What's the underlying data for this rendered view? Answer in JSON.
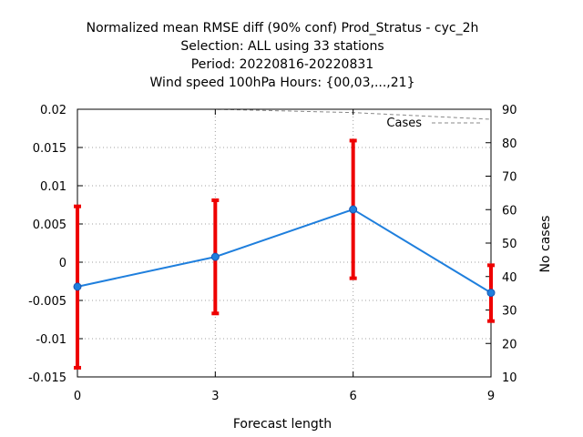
{
  "title_lines": [
    "Normalized mean RMSE diff (90% conf) Prod_Stratus - cyc_2h",
    "Selection: ALL using    33 stations",
    "Period: 20220816-20220831",
    "Wind speed 100hPa   Hours: {00,03,...,21}"
  ],
  "chart_data": {
    "type": "line",
    "xlabel": "Forecast length",
    "ylabel": "",
    "y2label": "No cases",
    "x": [
      0,
      3,
      6,
      9
    ],
    "x_ticks": [
      "0",
      "3",
      "6",
      "9"
    ],
    "xlim": [
      0,
      9
    ],
    "ylim": [
      -0.015,
      0.02
    ],
    "y_ticks": [
      "-0.015",
      "-0.01",
      "-0.005",
      "0",
      "0.005",
      "0.01",
      "0.015",
      "0.02"
    ],
    "y2lim": [
      10,
      90
    ],
    "y2_ticks": [
      "10",
      "20",
      "30",
      "40",
      "50",
      "60",
      "70",
      "80",
      "90"
    ],
    "grid": true,
    "legend_position": "top-right",
    "series": [
      {
        "values": [
          -0.0032,
          0.0007,
          0.0069,
          -0.004
        ],
        "ci_low": [
          -0.0138,
          -0.0067,
          -0.0021,
          -0.0077
        ],
        "ci_high": [
          0.0073,
          0.0081,
          0.0159,
          -0.0004
        ],
        "color": "#1f7fdd",
        "errorbar_color": "#ee0000"
      },
      {
        "name": "Cases",
        "axis": "right",
        "values": [
          90,
          90,
          89,
          87
        ],
        "color": "#888888",
        "style": "dashed"
      }
    ]
  }
}
